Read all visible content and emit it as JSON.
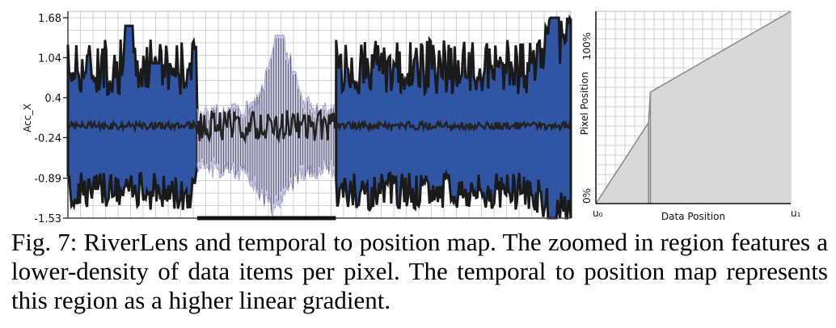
{
  "chart_data": [
    {
      "type": "area",
      "name": "riverlens",
      "ylabel": "Acc_X",
      "yticks": [
        "1.68",
        "1.04",
        "0.4",
        "-0.24",
        "-0.89",
        "-1.53"
      ],
      "ylim": [
        -1.53,
        1.68
      ],
      "grid": true,
      "segments": [
        {
          "x": [
            0.0,
            0.55
          ],
          "density": "high"
        },
        {
          "x": [
            0.55,
            1.14
          ],
          "density": "low"
        },
        {
          "x": [
            1.14,
            2.14
          ],
          "density": "high"
        }
      ],
      "mean_level": -0.05,
      "band_inner": [
        -0.5,
        0.4
      ],
      "band_outer": [
        -1.1,
        0.9
      ],
      "peaks": [
        {
          "x": 0.26,
          "y": 1.55
        },
        {
          "x": 0.37,
          "y": 0.95
        },
        {
          "x": 0.9,
          "y": 1.4
        },
        {
          "x": 2.07,
          "y": 1.5
        },
        {
          "x": 2.06,
          "y": -1.45
        }
      ],
      "colors": {
        "band": "#2f55a4",
        "zoom_band": "#c8c7e3",
        "outline": "#1a1a1a",
        "grid": "#d0d0d0"
      }
    },
    {
      "type": "line",
      "name": "temporal-position-map",
      "xlabel": "Data Position",
      "ylabel": "Pixel Position",
      "x_tick_labels": [
        "u₀",
        "u₁"
      ],
      "y_tick_labels": [
        "0%",
        "100%"
      ],
      "x": [
        0,
        0.27,
        0.28,
        1.0
      ],
      "y": [
        0,
        0.42,
        0.58,
        1.0
      ],
      "grid": true,
      "colors": {
        "fill": "#d8d8d8",
        "line": "#888888",
        "grid": "#d0d0d0"
      }
    }
  ],
  "caption": "Fig. 7: RiverLens and temporal to position map. The zoomed in region features a lower-density of data items per pixel. The temporal to position map represents this region as a higher linear gradient."
}
